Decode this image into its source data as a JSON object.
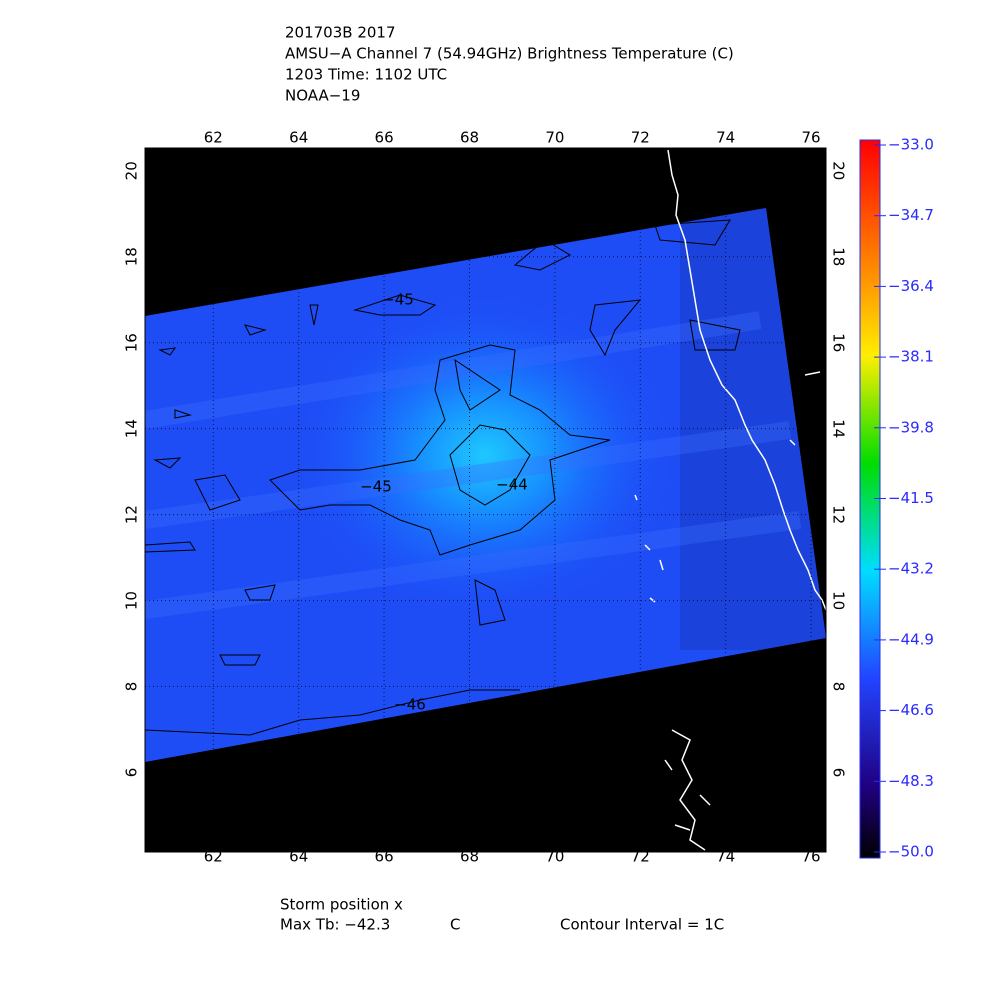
{
  "title_lines": [
    "201703B 2017",
    "AMSU−A Channel 7 (54.94GHz) Brightness Temperature (C)",
    "1203 Time: 1102 UTC",
    "NOAA−19"
  ],
  "map": {
    "xlim": [
      60.4,
      76.35
    ],
    "ylim": [
      4.15,
      20.53
    ],
    "xticks": [
      62,
      64,
      66,
      68,
      70,
      72,
      74,
      76
    ],
    "yticks": [
      6,
      8,
      10,
      12,
      14,
      16,
      18,
      20
    ],
    "grid": true
  },
  "contour_labels": [
    {
      "value": -45,
      "label": "−45"
    },
    {
      "value": -45,
      "label": "−45"
    },
    {
      "value": -44,
      "label": "−44"
    },
    {
      "value": -46,
      "label": "−46"
    }
  ],
  "colorbar": {
    "range": [
      -50,
      -33
    ],
    "ticks": [
      {
        "value": -33,
        "label": "−33.0"
      },
      {
        "value": -34.7,
        "label": "−34.7"
      },
      {
        "value": -36.4,
        "label": "−36.4"
      },
      {
        "value": -38.1,
        "label": "−38.1"
      },
      {
        "value": -39.8,
        "label": "−39.8"
      },
      {
        "value": -41.5,
        "label": "−41.5"
      },
      {
        "value": -43.2,
        "label": "−43.2"
      },
      {
        "value": -44.9,
        "label": "−44.9"
      },
      {
        "value": -46.6,
        "label": "−46.6"
      },
      {
        "value": -48.3,
        "label": "−48.3"
      },
      {
        "value": -50,
        "label": "−50.0"
      }
    ]
  },
  "footer": {
    "storm": "Storm position x",
    "max_tb": "Max Tb: −42.3",
    "unit": "C",
    "interval": "Contour Interval = 1C"
  }
}
